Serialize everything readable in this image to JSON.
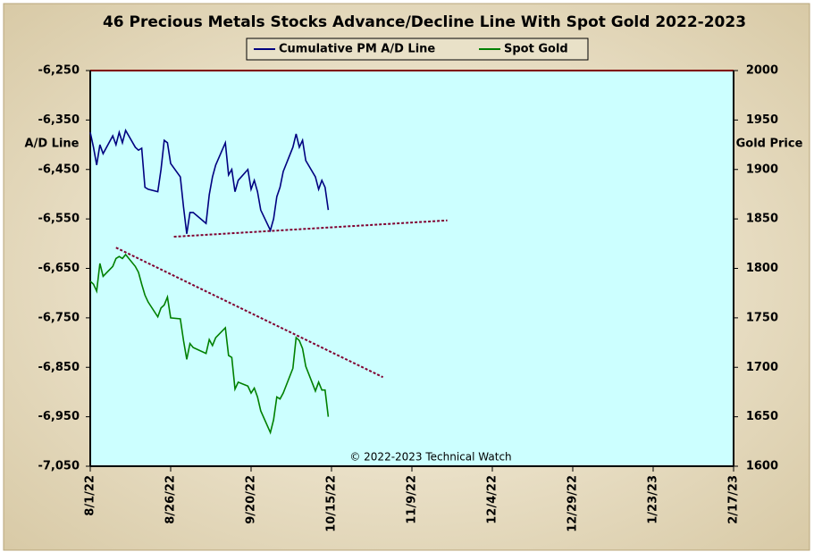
{
  "chart_data": {
    "type": "line",
    "title": "46 Precious Metals Stocks Advance/Decline  Line With Spot Gold 2022-2023",
    "ylabel": "A/D Line",
    "y2label": "Gold Price",
    "annotation": "© 2022-2023  Technical  Watch",
    "legend": "top",
    "grid": false,
    "background": "#ccffff",
    "x": [
      "8/1/22",
      "8/2/22",
      "8/3/22",
      "8/4/22",
      "8/5/22",
      "8/8/22",
      "8/9/22",
      "8/10/22",
      "8/11/22",
      "8/12/22",
      "8/15/22",
      "8/16/22",
      "8/17/22",
      "8/18/22",
      "8/19/22",
      "8/22/22",
      "8/23/22",
      "8/24/22",
      "8/25/22",
      "8/26/22",
      "8/29/22",
      "8/30/22",
      "8/31/22",
      "9/1/22",
      "9/2/22",
      "9/6/22",
      "9/7/22",
      "9/8/22",
      "9/9/22",
      "9/12/22",
      "9/13/22",
      "9/14/22",
      "9/15/22",
      "9/16/22",
      "9/19/22",
      "9/20/22",
      "9/21/22",
      "9/22/22",
      "9/23/22",
      "9/26/22",
      "9/27/22",
      "9/28/22",
      "9/29/22",
      "9/30/22",
      "10/3/22",
      "10/4/22",
      "10/5/22",
      "10/6/22",
      "10/7/22",
      "10/10/22",
      "10/11/22",
      "10/12/22",
      "10/13/22",
      "10/14/22"
    ],
    "series": [
      {
        "name": "Cumulative PM A/D Line",
        "color": "#000080",
        "values": [
          -6375,
          -6405,
          -6441,
          -6400,
          -6418,
          -6382,
          -6400,
          -6375,
          -6396,
          -6371,
          -6405,
          -6411,
          -6407,
          -6486,
          -6490,
          -6495,
          -6450,
          -6391,
          -6396,
          -6438,
          -6465,
          -6526,
          -6580,
          -6537,
          -6537,
          -6559,
          -6501,
          -6465,
          -6441,
          -6396,
          -6461,
          -6450,
          -6495,
          -6472,
          -6450,
          -6490,
          -6472,
          -6495,
          -6532,
          -6573,
          -6550,
          -6505,
          -6486,
          -6454,
          -6405,
          -6378,
          -6405,
          -6391,
          -6432,
          -6465,
          -6490,
          -6472,
          -6486,
          -6532
        ]
      },
      {
        "name": "Spot Gold",
        "color": "#008000",
        "axis": "y2",
        "values": [
          1787,
          1784,
          1777,
          1805,
          1792,
          1802,
          1810,
          1812,
          1810,
          1814,
          1802,
          1796,
          1784,
          1773,
          1766,
          1751,
          1760,
          1763,
          1771,
          1750,
          1749,
          1727,
          1708,
          1724,
          1720,
          1714,
          1728,
          1722,
          1730,
          1740,
          1712,
          1710,
          1678,
          1685,
          1681,
          1674,
          1679,
          1670,
          1656,
          1634,
          1647,
          1670,
          1668,
          1674,
          1699,
          1730,
          1727,
          1719,
          1701,
          1676,
          1685,
          1677,
          1677,
          1650
        ]
      }
    ],
    "trendlines": [
      {
        "color": "#800030",
        "x": [
          "8/27/22",
          "11/20/22"
        ],
        "values": [
          -6586,
          -6553
        ]
      },
      {
        "color": "#800030",
        "axis": "y2",
        "x": [
          "8/9/22",
          "10/31/22"
        ],
        "values": [
          1821,
          1690
        ]
      }
    ],
    "xlim": [
      "8/1/22",
      "2/17/23"
    ],
    "xticks": [
      "8/1/22",
      "8/26/22",
      "9/20/22",
      "10/15/22",
      "11/9/22",
      "12/4/22",
      "12/29/22",
      "1/23/23",
      "2/17/23"
    ],
    "ylim": [
      -7050,
      -6250
    ],
    "yticks": [
      {
        "value": -7050,
        "label": "-7,050"
      },
      {
        "value": -6950,
        "label": "-6,950"
      },
      {
        "value": -6850,
        "label": "-6,850"
      },
      {
        "value": -6750,
        "label": "-6,750"
      },
      {
        "value": -6650,
        "label": "-6,650"
      },
      {
        "value": -6550,
        "label": "-6,550"
      },
      {
        "value": -6450,
        "label": "-6,450"
      },
      {
        "value": -6350,
        "label": "-6,350"
      },
      {
        "value": -6250,
        "label": "-6,250"
      }
    ],
    "y2lim": [
      1600,
      2000
    ],
    "y2ticks": [
      1600,
      1650,
      1700,
      1750,
      1800,
      1850,
      1900,
      1950,
      2000
    ]
  }
}
